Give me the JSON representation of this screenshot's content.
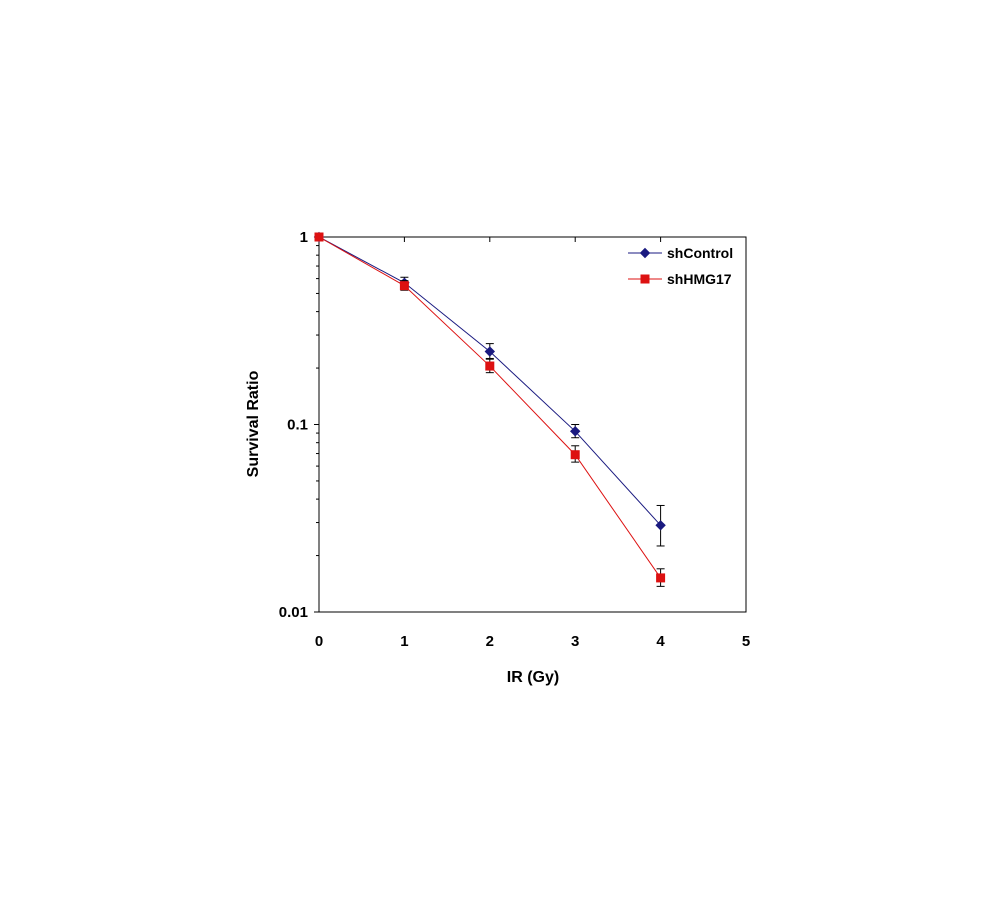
{
  "chart_data": {
    "type": "line",
    "xlabel": "IR (Gy)",
    "ylabel": "Survival Ratio",
    "xlim": [
      0,
      5
    ],
    "ylim": [
      0.01,
      1
    ],
    "yscale": "log",
    "x_ticks": [
      0,
      1,
      2,
      3,
      4,
      5
    ],
    "y_ticks": [
      0.01,
      0.1,
      1
    ],
    "x_tick_labels": [
      "0",
      "1",
      "2",
      "3",
      "4",
      "5"
    ],
    "y_tick_labels": [
      "0.01",
      "0.1",
      "1"
    ],
    "grid": false,
    "legend_position": "top-right",
    "series": [
      {
        "name": "shControl",
        "color": "#1a1a80",
        "marker": "diamond",
        "x": [
          0,
          1,
          2,
          3,
          4
        ],
        "y": [
          1.0,
          0.57,
          0.245,
          0.092,
          0.029
        ],
        "y_err_low": [
          0,
          0.035,
          0.02,
          0.007,
          0.0065
        ],
        "y_err_high": [
          0,
          0.04,
          0.025,
          0.008,
          0.008
        ]
      },
      {
        "name": "shHMG17",
        "color": "#dd1111",
        "marker": "square",
        "x": [
          0,
          1,
          2,
          3,
          4
        ],
        "y": [
          1.0,
          0.55,
          0.205,
          0.069,
          0.0152
        ],
        "y_err_low": [
          0,
          0.03,
          0.016,
          0.006,
          0.0015
        ],
        "y_err_high": [
          0,
          0.035,
          0.018,
          0.008,
          0.0018
        ]
      }
    ]
  }
}
